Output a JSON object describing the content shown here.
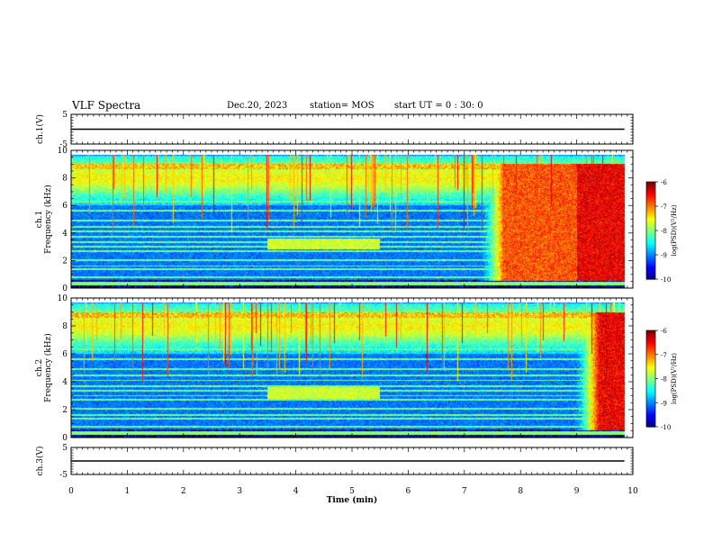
{
  "header": {
    "title": "VLF Spectra",
    "date": "Dec.20, 2023",
    "station": "station= MOS",
    "start": "start  UT =   0 : 30: 0"
  },
  "chart_data": [
    {
      "type": "line",
      "id": "ch1-voltage",
      "ylabel": "ch.1(V)",
      "ylim": [
        -5,
        5
      ],
      "yticks": [
        5,
        -5
      ],
      "series": [
        {
          "x": [
            0,
            9.85
          ],
          "values": [
            0,
            0
          ]
        }
      ]
    },
    {
      "type": "heatmap",
      "id": "ch1-spectrogram",
      "ylabel": "ch.1\nFrequency (kHz)",
      "ylim": [
        0,
        10
      ],
      "yticks": [
        0,
        2,
        4,
        6,
        8,
        10
      ],
      "colorbar": {
        "label": "log(PSD)(V²/Hz)",
        "range": [
          -10,
          -6
        ],
        "ticks": [
          -6,
          -7,
          -8,
          -9,
          -10
        ]
      }
    },
    {
      "type": "heatmap",
      "id": "ch2-spectrogram",
      "ylabel": "ch.2\nFrequency (kHz)",
      "ylim": [
        0,
        10
      ],
      "yticks": [
        0,
        2,
        4,
        6,
        8,
        10
      ],
      "colorbar": {
        "label": "log(PSD)(V²/Hz)",
        "range": [
          -10,
          -6
        ],
        "ticks": [
          -6,
          -7,
          -8,
          -9,
          -10
        ]
      }
    },
    {
      "type": "line",
      "id": "ch3-voltage",
      "ylabel": "ch.3(V)",
      "ylim": [
        -5,
        5
      ],
      "yticks": [
        5,
        -5
      ],
      "series": [
        {
          "x": [
            0,
            9.85
          ],
          "values": [
            0,
            0
          ]
        }
      ]
    }
  ],
  "xaxis": {
    "label": "Time  (min)",
    "xlim": [
      0,
      10
    ],
    "ticks": [
      0,
      1,
      2,
      3,
      4,
      5,
      6,
      7,
      8,
      9,
      10
    ]
  }
}
